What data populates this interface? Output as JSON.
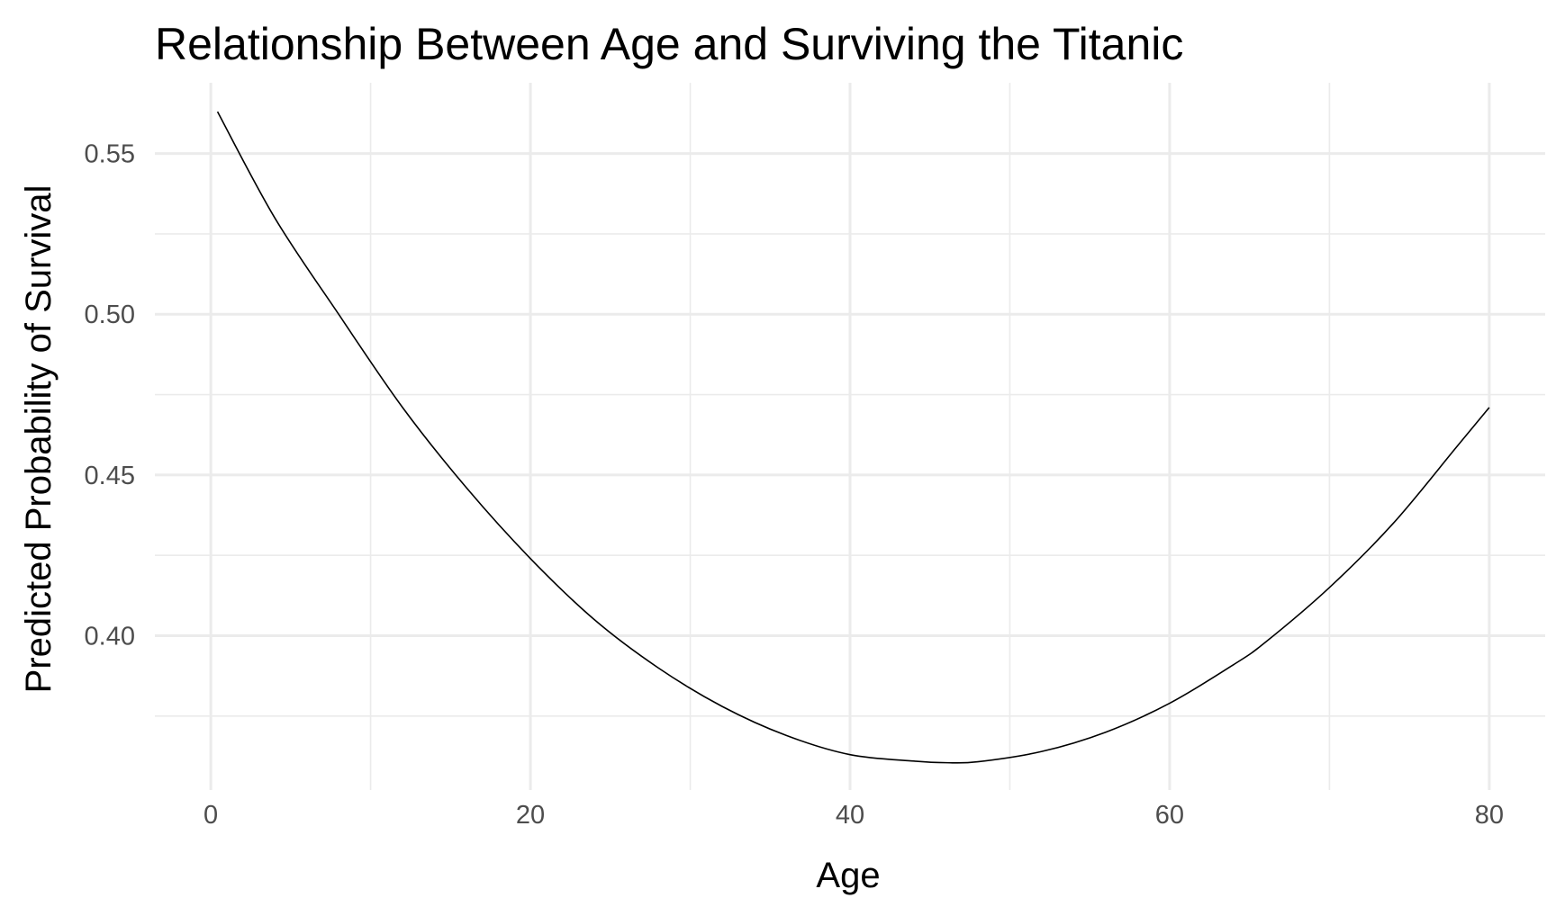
{
  "chart_data": {
    "type": "line",
    "title": "Relationship Between Age and Surviving the Titanic",
    "xlabel": "Age",
    "ylabel": "Predicted Probability of Survival",
    "xlim": [
      -3.5,
      83.5
    ],
    "ylim": [
      0.352,
      0.572
    ],
    "grid": true,
    "x_major_ticks": [
      0,
      20,
      40,
      60,
      80
    ],
    "x_tick_labels": [
      "0",
      "20",
      "40",
      "60",
      "80"
    ],
    "x_minor_ticks": [
      10,
      30,
      50,
      70
    ],
    "y_major_ticks": [
      0.4,
      0.45,
      0.5,
      0.55
    ],
    "y_tick_labels": [
      "0.40",
      "0.45",
      "0.50",
      "0.55"
    ],
    "y_minor_ticks": [
      0.375,
      0.425,
      0.475,
      0.525
    ],
    "series": [
      {
        "color": "#000000",
        "x": [
          0.42,
          4,
          8,
          12,
          16,
          20,
          24,
          28,
          32,
          36,
          40,
          44,
          46,
          48,
          52,
          56,
          60,
          64,
          66,
          70,
          74,
          78,
          80
        ],
        "y": [
          0.563,
          0.53,
          0.5,
          0.471,
          0.446,
          0.424,
          0.405,
          0.39,
          0.378,
          0.369,
          0.363,
          0.361,
          0.3605,
          0.3608,
          0.364,
          0.37,
          0.379,
          0.391,
          0.398,
          0.415,
          0.435,
          0.459,
          0.471
        ]
      }
    ]
  }
}
